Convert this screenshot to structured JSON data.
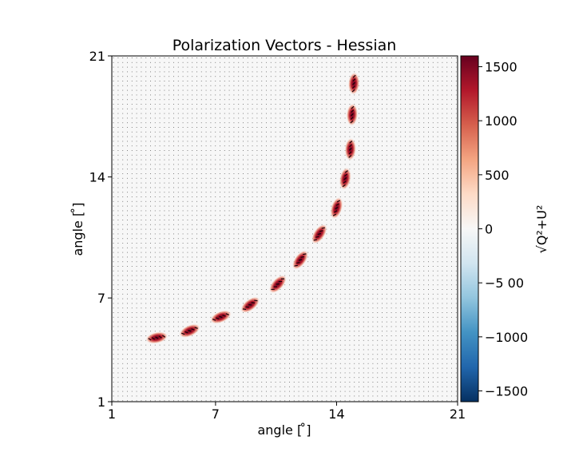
{
  "chart_data": {
    "type": "scatter",
    "title": "Polarization Vectors - Hessian",
    "xlabel": "angle [ ̊]",
    "ylabel": "angle [ ̊]",
    "xlim": [
      1,
      21
    ],
    "ylim": [
      1,
      21
    ],
    "xticks": [
      "1",
      "7",
      "14",
      "21"
    ],
    "yticks": [
      "1",
      "7",
      "14",
      "21"
    ],
    "grid": false,
    "colorbar": {
      "label": "√Q²+U²",
      "range": [
        -1600,
        1600
      ],
      "ticks": [
        "1500",
        "1000",
        "500",
        "0",
        "−5 00",
        "−1000",
        "−1500"
      ],
      "tick_values": [
        1500,
        1000,
        500,
        0,
        -500,
        -1000,
        -1500
      ],
      "colormap": "RdBu_r"
    },
    "series": [
      {
        "x": [
          3.6,
          5.5,
          7.3,
          9.0,
          10.6,
          11.9,
          13.0,
          14.0,
          14.5,
          14.8,
          14.9,
          15.0
        ],
        "y": [
          4.7,
          5.1,
          5.9,
          6.6,
          7.8,
          9.2,
          10.7,
          12.2,
          13.9,
          15.6,
          17.6,
          19.4
        ],
        "value": [
          1600,
          1600,
          1600,
          1600,
          1600,
          1600,
          1600,
          1600,
          1600,
          1600,
          1600,
          1600
        ]
      }
    ]
  }
}
